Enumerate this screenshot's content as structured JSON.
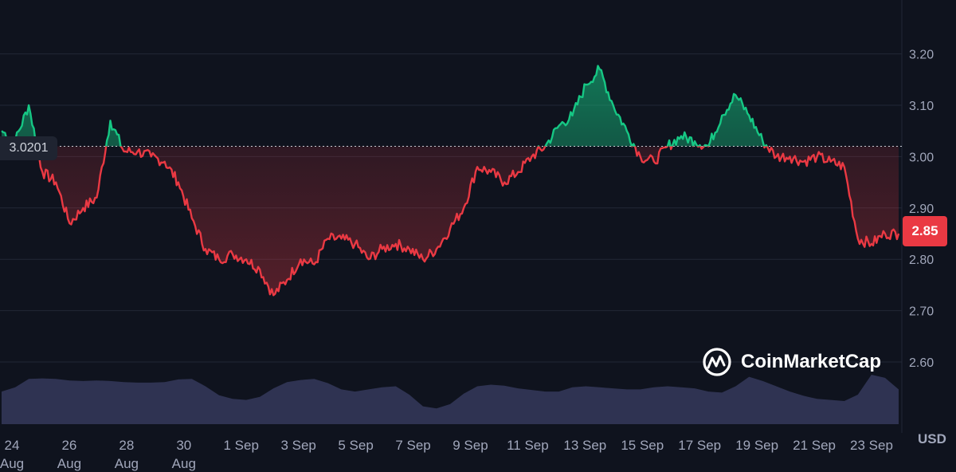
{
  "chart_data": {
    "type": "line",
    "currency": "USD",
    "reference_price": "3.0201",
    "last_price": "2.85",
    "ylim": [
      2.55,
      3.28
    ],
    "y_ticks": [
      "3.20",
      "3.10",
      "3.00",
      "2.90",
      "2.80",
      "2.70",
      "2.60"
    ],
    "x_ticks": [
      {
        "line1": "24",
        "line2": "Aug"
      },
      {
        "line1": "26",
        "line2": "Aug"
      },
      {
        "line1": "28",
        "line2": "Aug"
      },
      {
        "line1": "30",
        "line2": "Aug"
      },
      {
        "line1": "1 Sep",
        "line2": ""
      },
      {
        "line1": "3 Sep",
        "line2": ""
      },
      {
        "line1": "5 Sep",
        "line2": ""
      },
      {
        "line1": "7 Sep",
        "line2": ""
      },
      {
        "line1": "9 Sep",
        "line2": ""
      },
      {
        "line1": "11 Sep",
        "line2": ""
      },
      {
        "line1": "13 Sep",
        "line2": ""
      },
      {
        "line1": "15 Sep",
        "line2": ""
      },
      {
        "line1": "17 Sep",
        "line2": ""
      },
      {
        "line1": "19 Sep",
        "line2": ""
      },
      {
        "line1": "21 Sep",
        "line2": ""
      },
      {
        "line1": "23 Sep",
        "line2": ""
      }
    ],
    "series": [
      {
        "x": [
          "Aug 24",
          "Aug 24 12h",
          "Aug 25",
          "Aug 25 06h",
          "Aug 25 12h",
          "Aug 26",
          "Aug 26 12h",
          "Aug 27",
          "Aug 27 06h",
          "Aug 27 12h",
          "Aug 28",
          "Aug 28 12h",
          "Aug 29",
          "Aug 29 12h",
          "Aug 30",
          "Aug 30 12h",
          "Aug 31",
          "Aug 31 12h",
          "Sep 1",
          "Sep 1 06h",
          "Sep 1 12h",
          "Sep 2",
          "Sep 2 12h",
          "Sep 3",
          "Sep 3 12h",
          "Sep 4",
          "Sep 4 12h",
          "Sep 5",
          "Sep 5 12h",
          "Sep 6",
          "Sep 6 12h",
          "Sep 7",
          "Sep 7 12h",
          "Sep 8",
          "Sep 8 12h",
          "Sep 9",
          "Sep 9 12h",
          "Sep 10",
          "Sep 10 12h",
          "Sep 11",
          "Sep 11 12h",
          "Sep 12",
          "Sep 12 12h",
          "Sep 13",
          "Sep 13 12h",
          "Sep 14",
          "Sep 14 12h",
          "Sep 15",
          "Sep 15 12h",
          "Sep 16",
          "Sep 16 12h",
          "Sep 17",
          "Sep 17 12h",
          "Sep 18",
          "Sep 18 12h",
          "Sep 19",
          "Sep 19 12h",
          "Sep 20",
          "Sep 20 12h",
          "Sep 21",
          "Sep 21 12h",
          "Sep 22",
          "Sep 22 06h",
          "Sep 22 12h",
          "Sep 23",
          "Sep 23 12h",
          "Sep 24"
        ],
        "values": [
          3.05,
          3.03,
          3.1,
          2.97,
          2.95,
          2.87,
          2.9,
          2.92,
          3.07,
          3.01,
          3.01,
          3.0,
          2.99,
          2.95,
          2.88,
          2.82,
          2.8,
          2.81,
          2.8,
          2.78,
          2.73,
          2.76,
          2.8,
          2.79,
          2.84,
          2.84,
          2.83,
          2.8,
          2.82,
          2.83,
          2.82,
          2.8,
          2.82,
          2.86,
          2.9,
          2.98,
          2.97,
          2.95,
          2.97,
          3.0,
          3.02,
          3.06,
          3.08,
          3.14,
          3.17,
          3.1,
          3.05,
          3.0,
          2.99,
          3.02,
          3.04,
          3.03,
          3.02,
          3.08,
          3.12,
          3.08,
          3.03,
          3.0,
          3.0,
          2.99,
          3.0,
          2.99,
          2.98,
          2.84,
          2.83,
          2.85,
          2.85
        ],
        "volume": [
          0.62,
          0.7,
          0.86,
          0.87,
          0.86,
          0.83,
          0.82,
          0.83,
          0.82,
          0.8,
          0.79,
          0.79,
          0.8,
          0.85,
          0.86,
          0.72,
          0.55,
          0.48,
          0.46,
          0.52,
          0.68,
          0.8,
          0.84,
          0.86,
          0.78,
          0.66,
          0.62,
          0.66,
          0.7,
          0.72,
          0.56,
          0.34,
          0.3,
          0.38,
          0.58,
          0.72,
          0.75,
          0.73,
          0.68,
          0.65,
          0.62,
          0.62,
          0.7,
          0.72,
          0.7,
          0.68,
          0.66,
          0.66,
          0.7,
          0.72,
          0.7,
          0.68,
          0.62,
          0.6,
          0.72,
          0.9,
          0.82,
          0.72,
          0.62,
          0.54,
          0.48,
          0.46,
          0.44,
          0.56,
          0.94,
          0.88,
          0.66
        ]
      }
    ]
  },
  "branding": {
    "logo_text": "CoinMarketCap"
  },
  "colors": {
    "background": "#0f131e",
    "up": "#16c784",
    "down": "#ea3943",
    "grid": "#222736",
    "volume": "#353a5c"
  }
}
